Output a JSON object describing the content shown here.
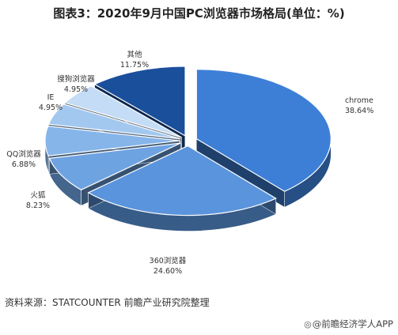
{
  "title": "图表3：2020年9月中国PC浏览器市场格局(单位：%)",
  "source": "资料来源：STATCOUNTER 前瞻产业研究院整理",
  "credit": "@前瞻经济学人APP",
  "chart_data": {
    "type": "pie",
    "title": "图表3：2020年9月中国PC浏览器市场格局(单位：%)",
    "slices": [
      {
        "label": "chrome",
        "value_text": "38.64%",
        "value": 38.64,
        "color": "#3d7fd6"
      },
      {
        "label": "360浏览器",
        "value_text": "24.60%",
        "value": 24.6,
        "color": "#5a94dc"
      },
      {
        "label": "火狐",
        "value_text": "8.23%",
        "value": 8.23,
        "color": "#6ea3e2"
      },
      {
        "label": "QQ浏览器",
        "value_text": "6.88%",
        "value": 6.88,
        "color": "#86b5ea"
      },
      {
        "label": "IE",
        "value_text": "4.95%",
        "value": 4.95,
        "color": "#a3c8f0"
      },
      {
        "label": "搜狗浏览器",
        "value_text": "4.95%",
        "value": 4.95,
        "color": "#c4dcf5"
      },
      {
        "label": "其他",
        "value_text": "11.75%",
        "value": 11.75,
        "color": "#1a4f9c"
      }
    ]
  }
}
